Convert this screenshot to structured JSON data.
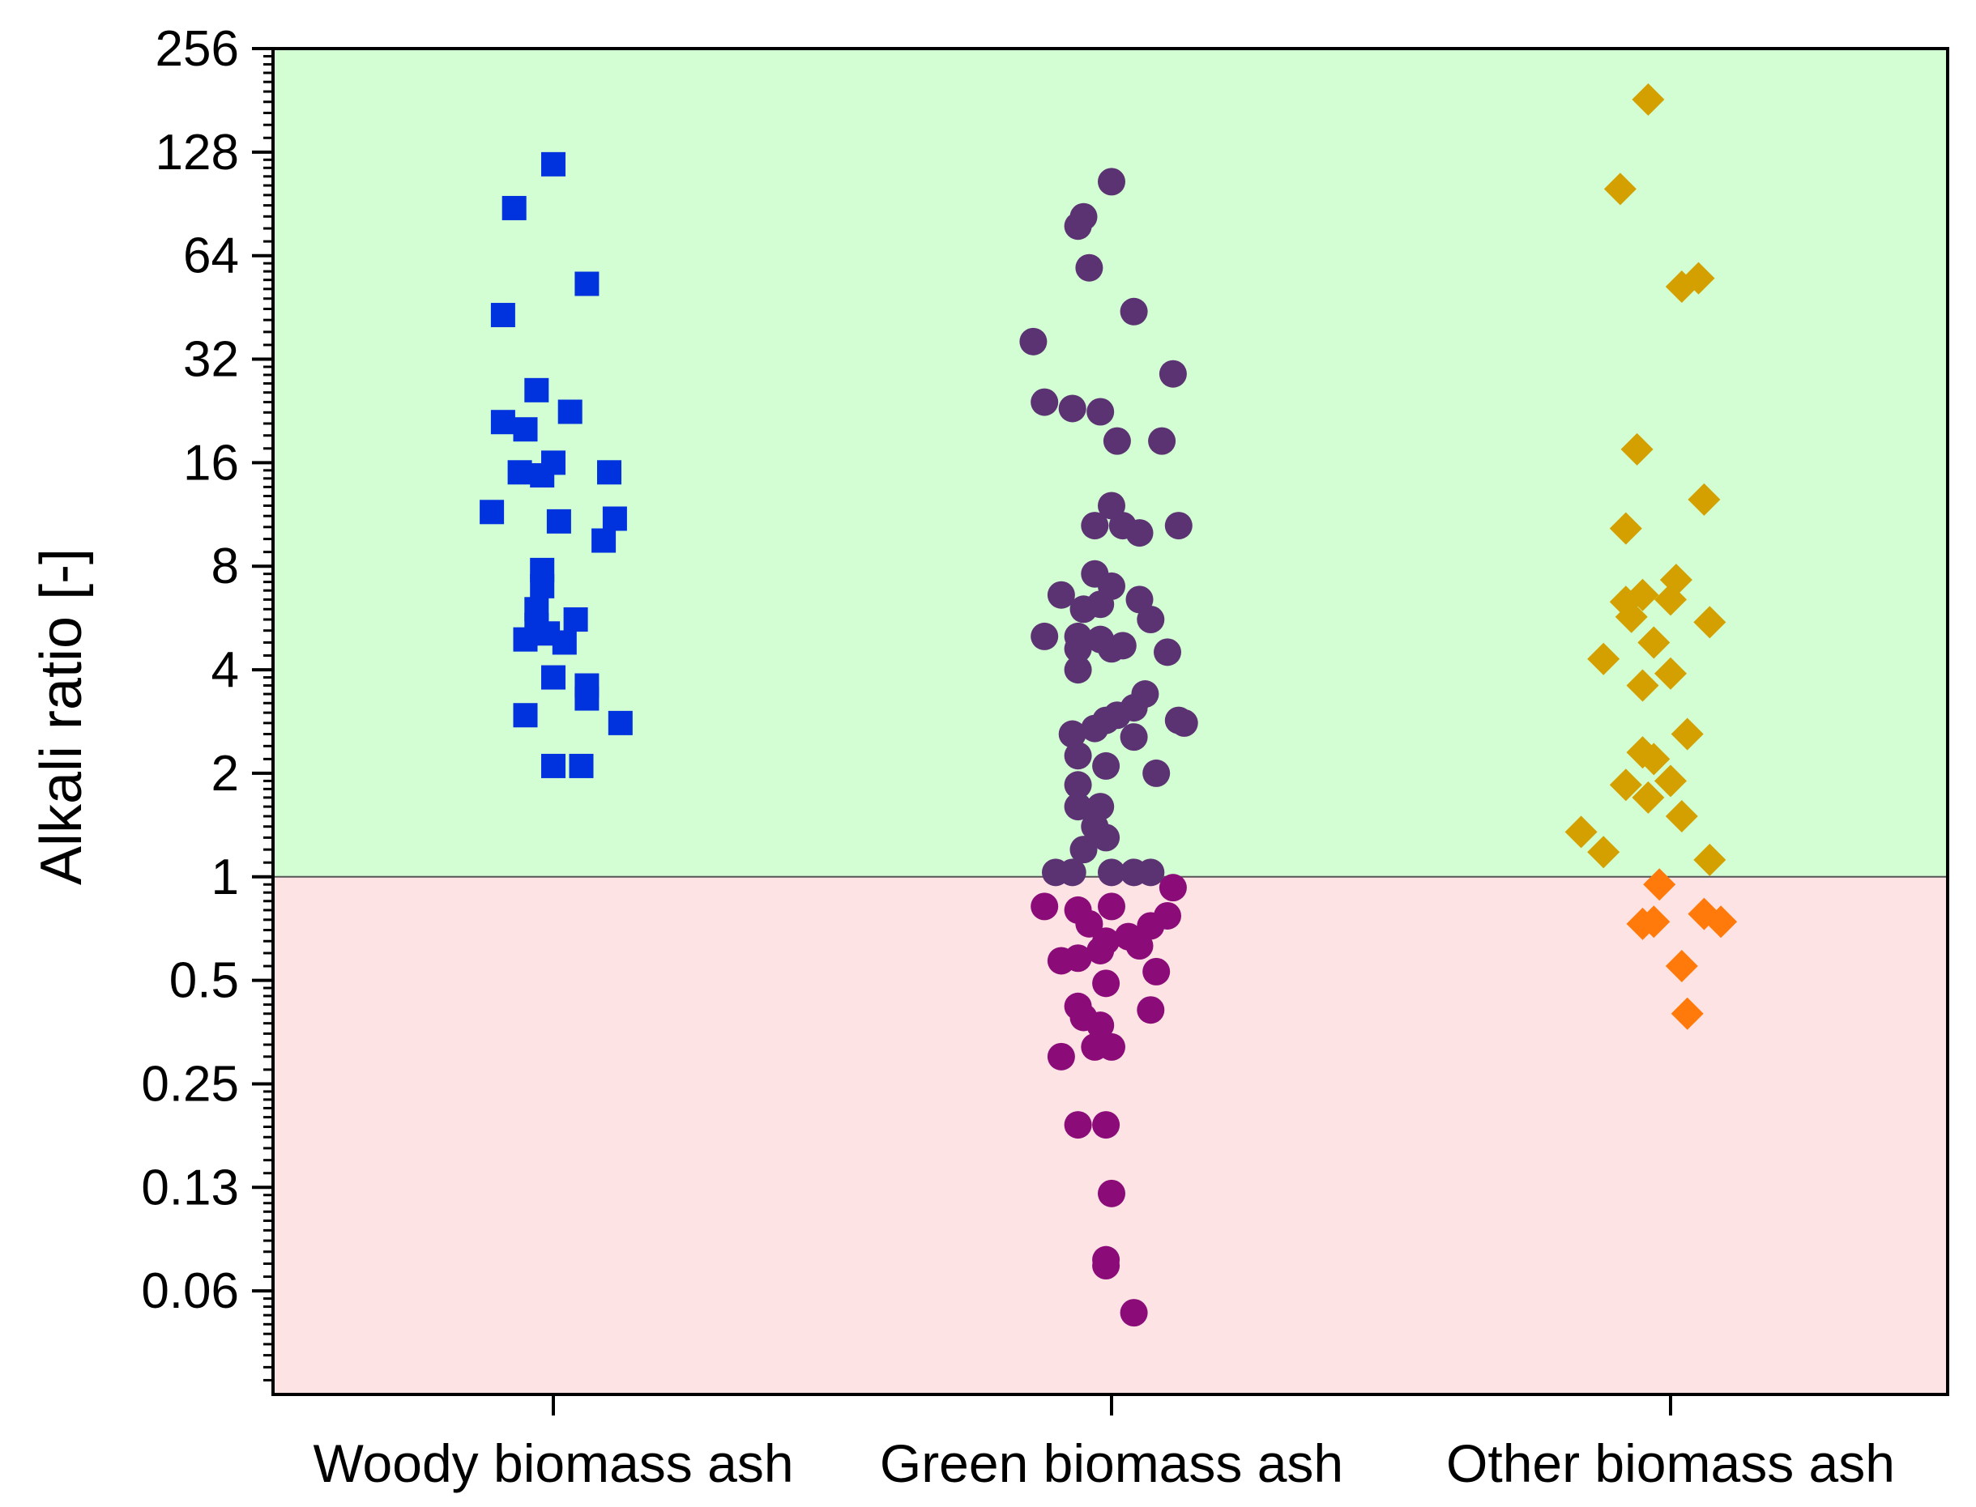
{
  "chart_data": {
    "type": "scatter",
    "title": "",
    "xlabel": "",
    "ylabel": "Alkali ratio [-]",
    "yscale": "log2",
    "ylim": [
      0.03125,
      256
    ],
    "yticks": [
      256,
      128,
      64,
      32,
      16,
      8,
      4,
      2,
      1,
      0.5,
      0.25,
      0.125,
      0.0625
    ],
    "ytick_labels": [
      "256",
      "128",
      "64",
      "32",
      "16",
      "8",
      "4",
      "2",
      "1",
      "0.5",
      "0.25",
      "0.13",
      "0.06"
    ],
    "categories": [
      "Woody biomass ash",
      "Green biomass ash",
      "Other biomass ash"
    ],
    "threshold": 1,
    "region_colors": {
      "above": "#d3fdd3",
      "below": "#fde3e3",
      "threshold_line": "#555555"
    },
    "series": [
      {
        "name": "Woody biomass ash",
        "marker": "square-icon",
        "color_above": "#0033dd",
        "color_below": "#0033dd",
        "points": [
          [
            0.0,
            118
          ],
          [
            -0.07,
            88
          ],
          [
            0.06,
            53
          ],
          [
            -0.09,
            43
          ],
          [
            -0.03,
            26
          ],
          [
            0.03,
            22.5
          ],
          [
            -0.09,
            21
          ],
          [
            -0.05,
            20
          ],
          [
            0.0,
            16
          ],
          [
            -0.06,
            15
          ],
          [
            -0.02,
            14.7
          ],
          [
            0.1,
            15
          ],
          [
            -0.11,
            11.5
          ],
          [
            0.11,
            11
          ],
          [
            0.01,
            10.8
          ],
          [
            0.09,
            9.5
          ],
          [
            -0.02,
            7.8
          ],
          [
            -0.02,
            7.0
          ],
          [
            -0.03,
            6.0
          ],
          [
            0.04,
            5.6
          ],
          [
            -0.03,
            5.4
          ],
          [
            -0.05,
            4.9
          ],
          [
            -0.01,
            5.1
          ],
          [
            0.02,
            4.8
          ],
          [
            0.0,
            3.8
          ],
          [
            0.06,
            3.6
          ],
          [
            0.06,
            3.3
          ],
          [
            -0.05,
            2.95
          ],
          [
            0.12,
            2.8
          ],
          [
            0.0,
            2.1
          ],
          [
            0.05,
            2.1
          ]
        ]
      },
      {
        "name": "Green biomass ash",
        "marker": "circle-icon",
        "color_above": "#5b3272",
        "color_below": "#8b0c78",
        "points": [
          [
            0.0,
            105
          ],
          [
            -0.05,
            83
          ],
          [
            -0.06,
            78
          ],
          [
            -0.04,
            59
          ],
          [
            0.04,
            44
          ],
          [
            -0.14,
            36
          ],
          [
            0.11,
            29
          ],
          [
            -0.12,
            24
          ],
          [
            -0.07,
            23
          ],
          [
            -0.02,
            22.5
          ],
          [
            0.01,
            18.5
          ],
          [
            0.09,
            18.5
          ],
          [
            0.0,
            12
          ],
          [
            -0.03,
            10.5
          ],
          [
            0.02,
            10.5
          ],
          [
            0.05,
            10
          ],
          [
            0.12,
            10.5
          ],
          [
            -0.03,
            7.6
          ],
          [
            0.0,
            7.0
          ],
          [
            -0.09,
            6.6
          ],
          [
            0.05,
            6.4
          ],
          [
            -0.05,
            6.0
          ],
          [
            -0.02,
            6.2
          ],
          [
            0.07,
            5.6
          ],
          [
            -0.12,
            5.0
          ],
          [
            -0.06,
            5.0
          ],
          [
            -0.02,
            4.9
          ],
          [
            0.0,
            4.6
          ],
          [
            0.02,
            4.7
          ],
          [
            -0.06,
            4.6
          ],
          [
            0.1,
            4.5
          ],
          [
            -0.06,
            4.0
          ],
          [
            0.06,
            3.4
          ],
          [
            0.04,
            3.1
          ],
          [
            -0.01,
            2.85
          ],
          [
            0.01,
            2.95
          ],
          [
            0.12,
            2.85
          ],
          [
            0.13,
            2.8
          ],
          [
            -0.03,
            2.7
          ],
          [
            -0.07,
            2.6
          ],
          [
            0.04,
            2.55
          ],
          [
            -0.06,
            2.25
          ],
          [
            -0.01,
            2.1
          ],
          [
            0.08,
            2.0
          ],
          [
            -0.06,
            1.85
          ],
          [
            -0.06,
            1.6
          ],
          [
            -0.02,
            1.6
          ],
          [
            -0.03,
            1.4
          ],
          [
            -0.01,
            1.3
          ],
          [
            -0.05,
            1.2
          ],
          [
            -0.1,
            1.03
          ],
          [
            -0.07,
            1.03
          ],
          [
            0.0,
            1.03
          ],
          [
            0.04,
            1.03
          ],
          [
            0.07,
            1.03
          ],
          [
            0.11,
            0.93
          ],
          [
            -0.12,
            0.82
          ],
          [
            0.1,
            0.77
          ],
          [
            -0.06,
            0.8
          ],
          [
            0.0,
            0.82
          ],
          [
            0.07,
            0.72
          ],
          [
            -0.04,
            0.73
          ],
          [
            0.03,
            0.67
          ],
          [
            -0.01,
            0.65
          ],
          [
            0.05,
            0.63
          ],
          [
            -0.02,
            0.61
          ],
          [
            -0.09,
            0.57
          ],
          [
            -0.06,
            0.58
          ],
          [
            0.08,
            0.53
          ],
          [
            -0.01,
            0.49
          ],
          [
            -0.06,
            0.42
          ],
          [
            0.07,
            0.41
          ],
          [
            -0.05,
            0.39
          ],
          [
            -0.02,
            0.37
          ],
          [
            -0.03,
            0.32
          ],
          [
            0.0,
            0.32
          ],
          [
            -0.09,
            0.3
          ],
          [
            -0.06,
            0.19
          ],
          [
            -0.01,
            0.19
          ],
          [
            0.0,
            0.12
          ],
          [
            -0.01,
            0.077
          ],
          [
            -0.01,
            0.074
          ],
          [
            0.04,
            0.054
          ]
        ]
      },
      {
        "name": "Other biomass ash",
        "marker": "diamond-icon",
        "color_above": "#d4a000",
        "color_below": "#ff7a0a",
        "points": [
          [
            -0.04,
            182
          ],
          [
            -0.09,
            100
          ],
          [
            0.02,
            52
          ],
          [
            0.05,
            55
          ],
          [
            -0.06,
            17.5
          ],
          [
            0.06,
            12.5
          ],
          [
            -0.08,
            10.3
          ],
          [
            0.01,
            7.3
          ],
          [
            -0.05,
            6.6
          ],
          [
            -0.08,
            6.3
          ],
          [
            0.0,
            6.4
          ],
          [
            -0.07,
            5.7
          ],
          [
            0.07,
            5.5
          ],
          [
            -0.03,
            4.8
          ],
          [
            -0.12,
            4.3
          ],
          [
            0.0,
            3.9
          ],
          [
            -0.05,
            3.6
          ],
          [
            0.03,
            2.6
          ],
          [
            -0.05,
            2.3
          ],
          [
            -0.03,
            2.2
          ],
          [
            -0.08,
            1.85
          ],
          [
            0.0,
            1.9
          ],
          [
            -0.04,
            1.7
          ],
          [
            0.02,
            1.5
          ],
          [
            -0.16,
            1.35
          ],
          [
            -0.12,
            1.18
          ],
          [
            0.07,
            1.12
          ],
          [
            -0.02,
            0.95
          ],
          [
            -0.05,
            0.73
          ],
          [
            -0.03,
            0.74
          ],
          [
            0.06,
            0.78
          ],
          [
            0.09,
            0.74
          ],
          [
            0.02,
            0.55
          ],
          [
            0.03,
            0.4
          ]
        ]
      }
    ]
  }
}
